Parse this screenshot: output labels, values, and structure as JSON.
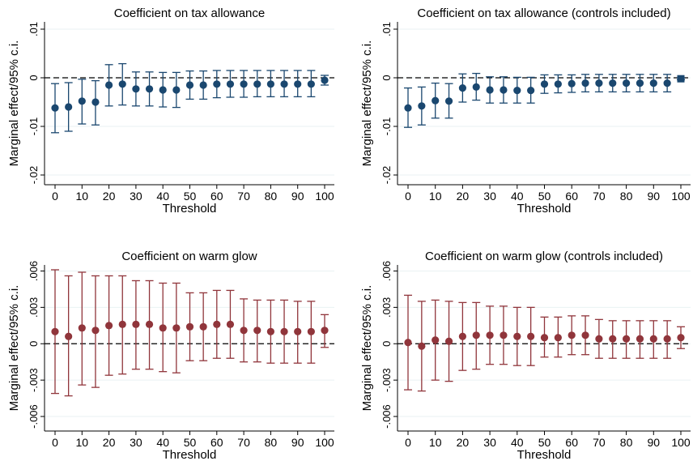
{
  "figure": {
    "common": {
      "xlabel": "Threshold",
      "ylabel": "Marginal effect/95% c.i.",
      "x_ticks": [
        0,
        10,
        20,
        30,
        40,
        50,
        60,
        70,
        80,
        90,
        100
      ]
    }
  },
  "chart_data": [
    {
      "type": "scatter",
      "title": "Coefficient on tax allowance",
      "xlabel": "Threshold",
      "ylabel": "Marginal effect/95% c.i.",
      "color": "#1a476f",
      "marker": "circle",
      "last_marker": "circle",
      "xlim": [
        0,
        100
      ],
      "ylim": [
        -0.022,
        0.0115
      ],
      "y_ticks": [
        -0.02,
        -0.01,
        0,
        0.01
      ],
      "y_tick_labels": [
        "-.02",
        "-.01",
        "0",
        ".01"
      ],
      "grid": true,
      "reference_line_y": 0,
      "x": [
        0,
        5,
        10,
        15,
        20,
        25,
        30,
        35,
        40,
        45,
        50,
        55,
        60,
        65,
        70,
        75,
        80,
        85,
        90,
        95,
        100
      ],
      "y": [
        -0.0062,
        -0.006,
        -0.0048,
        -0.005,
        -0.0015,
        -0.0013,
        -0.0023,
        -0.0023,
        -0.0025,
        -0.0025,
        -0.0015,
        -0.0015,
        -0.0013,
        -0.0013,
        -0.0013,
        -0.0013,
        -0.0013,
        -0.0013,
        -0.0013,
        -0.0013,
        -0.0005
      ],
      "ci_low": [
        -0.0113,
        -0.011,
        -0.0095,
        -0.0097,
        -0.0058,
        -0.0056,
        -0.0058,
        -0.0058,
        -0.006,
        -0.0061,
        -0.0044,
        -0.0044,
        -0.0041,
        -0.004,
        -0.004,
        -0.0039,
        -0.0039,
        -0.0039,
        -0.0039,
        -0.0039,
        -0.0015
      ],
      "ci_high": [
        -0.0012,
        -0.001,
        -0.0003,
        -0.0006,
        0.0027,
        0.0029,
        0.0012,
        0.0012,
        0.0011,
        0.0011,
        0.0014,
        0.0014,
        0.0015,
        0.0015,
        0.0015,
        0.0015,
        0.0015,
        0.0015,
        0.0015,
        0.0015,
        0.0005
      ]
    },
    {
      "type": "scatter",
      "title": "Coefficient on tax allowance (controls included)",
      "xlabel": "Threshold",
      "ylabel": "Marginal effect/95% c.i.",
      "color": "#1a476f",
      "marker": "circle",
      "last_marker": "square",
      "xlim": [
        0,
        100
      ],
      "ylim": [
        -0.022,
        0.0115
      ],
      "y_ticks": [
        -0.02,
        -0.01,
        0,
        0.01
      ],
      "y_tick_labels": [
        "-.02",
        "-.01",
        "0",
        ".01"
      ],
      "grid": true,
      "reference_line_y": 0,
      "x": [
        0,
        5,
        10,
        15,
        20,
        25,
        30,
        35,
        40,
        45,
        50,
        55,
        60,
        65,
        70,
        75,
        80,
        85,
        90,
        95,
        100
      ],
      "y": [
        -0.0062,
        -0.0058,
        -0.0047,
        -0.0048,
        -0.0021,
        -0.0019,
        -0.0025,
        -0.0025,
        -0.0026,
        -0.0026,
        -0.0013,
        -0.0013,
        -0.0012,
        -0.0011,
        -0.0011,
        -0.0011,
        -0.0011,
        -0.0011,
        -0.0011,
        -0.0011,
        -0.0002
      ],
      "ci_low": [
        -0.0102,
        -0.0097,
        -0.0083,
        -0.0083,
        -0.005,
        -0.0046,
        -0.0052,
        -0.0052,
        -0.0052,
        -0.0052,
        -0.0032,
        -0.0031,
        -0.003,
        -0.0029,
        -0.0029,
        -0.0029,
        -0.0029,
        -0.0029,
        -0.0029,
        -0.0029,
        -0.0004
      ],
      "ci_high": [
        -0.0021,
        -0.0019,
        -0.0011,
        -0.0012,
        0.0008,
        0.0009,
        0.0002,
        0.0002,
        0.0001,
        0.0001,
        0.0006,
        0.0006,
        0.0006,
        0.0007,
        0.0007,
        0.0007,
        0.0007,
        0.0007,
        0.0007,
        0.0007,
        0.0
      ]
    },
    {
      "type": "scatter",
      "title": "Coefficient on warm glow",
      "xlabel": "Threshold",
      "ylabel": "Marginal effect/95% c.i.",
      "color": "#90353b",
      "marker": "circle",
      "last_marker": "circle",
      "xlim": [
        0,
        100
      ],
      "ylim": [
        -0.0072,
        0.0065
      ],
      "y_ticks": [
        -0.006,
        -0.003,
        0,
        0.003,
        0.006
      ],
      "y_tick_labels": [
        "-.006",
        "-.003",
        "0",
        ".003",
        ".006"
      ],
      "grid": true,
      "reference_line_y": 0,
      "x": [
        0,
        5,
        10,
        15,
        20,
        25,
        30,
        35,
        40,
        45,
        50,
        55,
        60,
        65,
        70,
        75,
        80,
        85,
        90,
        95,
        100
      ],
      "y": [
        0.001,
        0.0006,
        0.0013,
        0.0011,
        0.0015,
        0.0016,
        0.0016,
        0.0016,
        0.0013,
        0.0013,
        0.0014,
        0.0014,
        0.0016,
        0.0016,
        0.0011,
        0.0011,
        0.001,
        0.001,
        0.001,
        0.001,
        0.0011
      ],
      "ci_low": [
        -0.0041,
        -0.0043,
        -0.0034,
        -0.0036,
        -0.0026,
        -0.0025,
        -0.0021,
        -0.0021,
        -0.0023,
        -0.0024,
        -0.0014,
        -0.0014,
        -0.0012,
        -0.0012,
        -0.0015,
        -0.0015,
        -0.0016,
        -0.0016,
        -0.0016,
        -0.0016,
        -0.0003
      ],
      "ci_high": [
        0.0061,
        0.0056,
        0.0059,
        0.0056,
        0.0056,
        0.0056,
        0.0052,
        0.0052,
        0.005,
        0.005,
        0.0042,
        0.0042,
        0.0044,
        0.0044,
        0.0037,
        0.0036,
        0.0036,
        0.0036,
        0.0035,
        0.0035,
        0.0024
      ]
    },
    {
      "type": "scatter",
      "title": "Coefficient on warm glow (controls included)",
      "xlabel": "Threshold",
      "ylabel": "Marginal effect/95% c.i.",
      "color": "#90353b",
      "marker": "circle",
      "last_marker": "circle",
      "xlim": [
        0,
        100
      ],
      "ylim": [
        -0.0072,
        0.0065
      ],
      "y_ticks": [
        -0.006,
        -0.003,
        0,
        0.003,
        0.006
      ],
      "y_tick_labels": [
        "-.006",
        "-.003",
        "0",
        ".003",
        ".006"
      ],
      "grid": true,
      "reference_line_y": 0,
      "x": [
        0,
        5,
        10,
        15,
        20,
        25,
        30,
        35,
        40,
        45,
        50,
        55,
        60,
        65,
        70,
        75,
        80,
        85,
        90,
        95,
        100
      ],
      "y": [
        0.0001,
        -0.0002,
        0.0003,
        0.0002,
        0.0006,
        0.0007,
        0.0007,
        0.0007,
        0.0006,
        0.0006,
        0.0005,
        0.0005,
        0.0007,
        0.0007,
        0.0004,
        0.0004,
        0.0004,
        0.0004,
        0.0004,
        0.0004,
        0.0005
      ],
      "ci_low": [
        -0.0038,
        -0.0039,
        -0.003,
        -0.0031,
        -0.0022,
        -0.0021,
        -0.0017,
        -0.0017,
        -0.0018,
        -0.0018,
        -0.0011,
        -0.0011,
        -0.0009,
        -0.0009,
        -0.0012,
        -0.0012,
        -0.0012,
        -0.0012,
        -0.0012,
        -0.0012,
        -0.0004
      ],
      "ci_high": [
        0.004,
        0.0035,
        0.0036,
        0.0035,
        0.0034,
        0.0034,
        0.0031,
        0.0031,
        0.003,
        0.003,
        0.0022,
        0.0022,
        0.0023,
        0.0023,
        0.002,
        0.0019,
        0.0019,
        0.0019,
        0.0019,
        0.0019,
        0.0014
      ]
    }
  ]
}
